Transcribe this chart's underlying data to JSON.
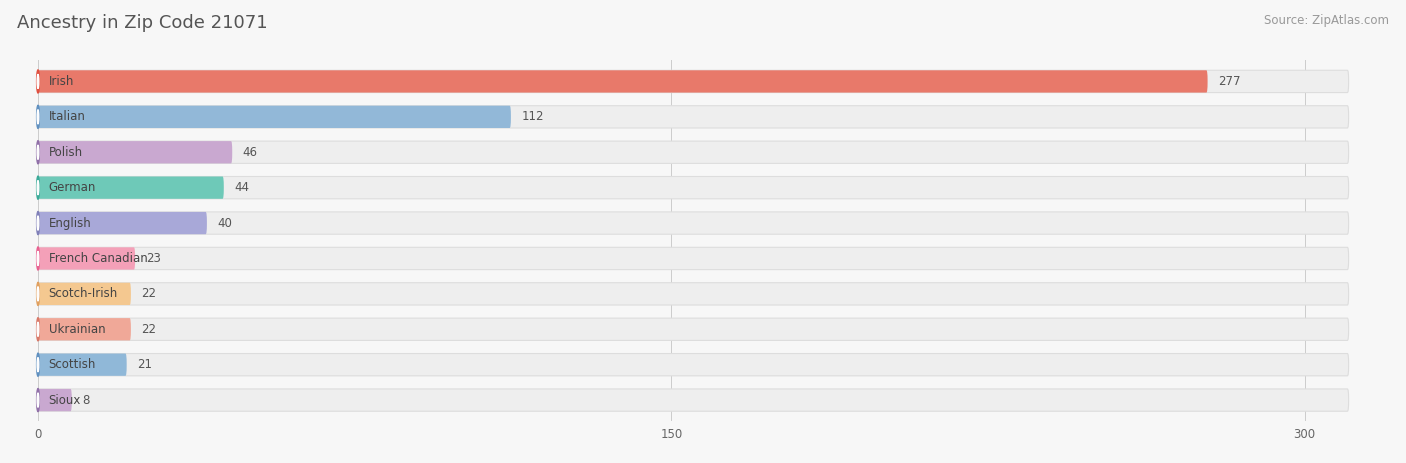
{
  "title": "Ancestry in Zip Code 21071",
  "source": "Source: ZipAtlas.com",
  "categories": [
    "Irish",
    "Italian",
    "Polish",
    "German",
    "English",
    "French Canadian",
    "Scotch-Irish",
    "Ukrainian",
    "Scottish",
    "Sioux"
  ],
  "values": [
    277,
    112,
    46,
    44,
    40,
    23,
    22,
    22,
    21,
    8
  ],
  "bar_colors": [
    "#e8796a",
    "#92b8d8",
    "#c9a8d0",
    "#6ec9b8",
    "#a8a8d8",
    "#f4a0b8",
    "#f4c890",
    "#f0a898",
    "#90b8d8",
    "#c9a8d0"
  ],
  "circle_colors": [
    "#e05040",
    "#6090c0",
    "#9070a8",
    "#3aaa98",
    "#8080b8",
    "#e86090",
    "#e0a060",
    "#d87868",
    "#6090c0",
    "#9070a8"
  ],
  "row_bg_colors": [
    "#f0f0f0",
    "#f0f0f0",
    "#f0f0f0",
    "#f0f0f0",
    "#f0f0f0",
    "#f0f0f0",
    "#f0f0f0",
    "#f0f0f0",
    "#f0f0f0",
    "#f0f0f0"
  ],
  "background_color": "#f7f7f7",
  "xlim_max": 320,
  "xticks": [
    0,
    150,
    300
  ],
  "title_fontsize": 13,
  "label_fontsize": 8.5,
  "value_fontsize": 8.5,
  "source_fontsize": 8.5
}
